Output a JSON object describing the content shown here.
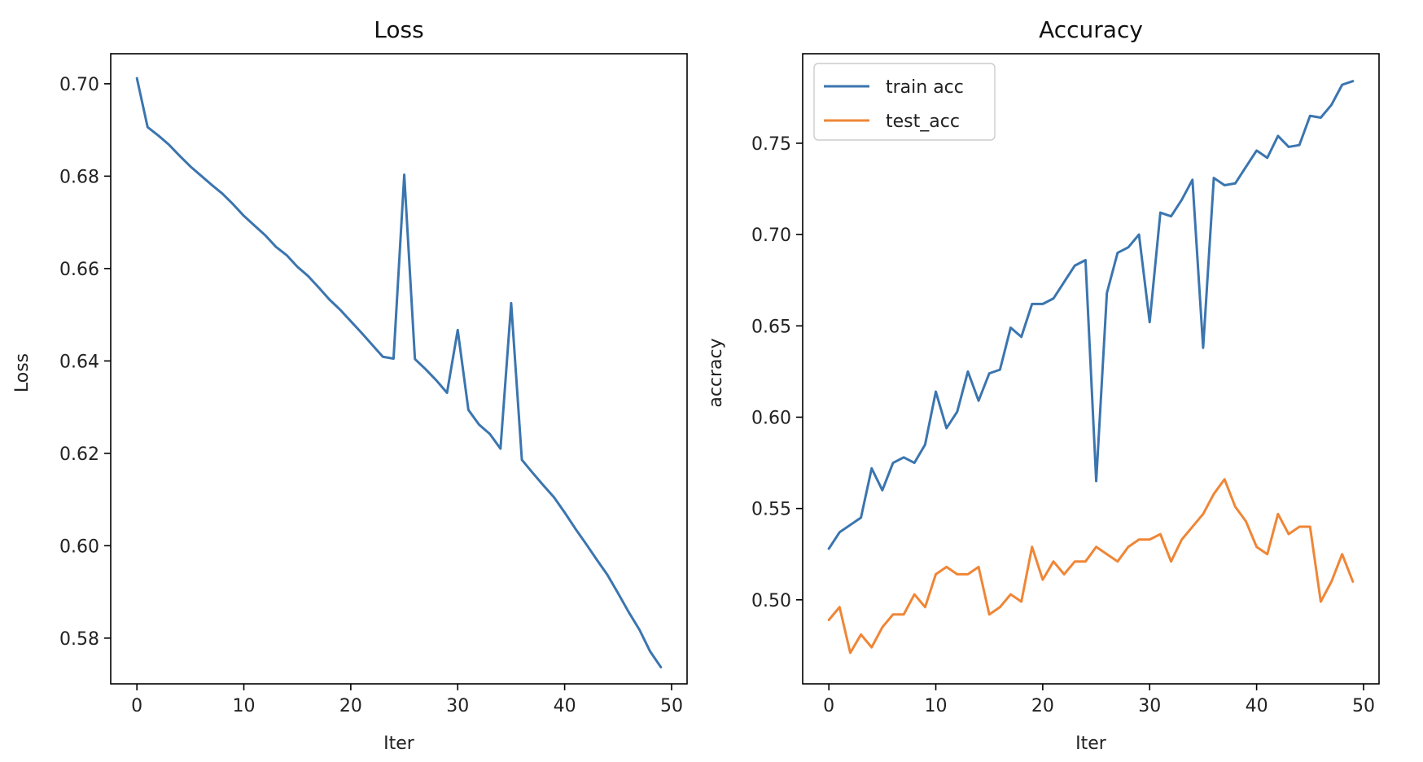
{
  "chart_data": [
    {
      "type": "line",
      "title": "Loss",
      "xlabel": "Iter",
      "ylabel": "Loss",
      "xlim": [
        -2.45,
        51.45
      ],
      "ylim": [
        0.5701,
        0.7065
      ],
      "xticks": [
        0,
        10,
        20,
        30,
        40,
        50
      ],
      "yticks": [
        0.58,
        0.6,
        0.62,
        0.64,
        0.66,
        0.68,
        0.7
      ],
      "ytick_format": 2,
      "legend": null,
      "series": [
        {
          "color": "#3b75af",
          "x": [
            0,
            1,
            2,
            3,
            4,
            5,
            6,
            7,
            8,
            9,
            10,
            11,
            12,
            13,
            14,
            15,
            16,
            17,
            18,
            19,
            20,
            21,
            22,
            23,
            24,
            25,
            26,
            27,
            28,
            29,
            30,
            31,
            32,
            33,
            34,
            35,
            36,
            37,
            38,
            39,
            40,
            41,
            42,
            43,
            44,
            45,
            46,
            47,
            48,
            49
          ],
          "values": [
            0.7012,
            0.6906,
            0.6888,
            0.6868,
            0.6844,
            0.6821,
            0.6801,
            0.6781,
            0.6762,
            0.6739,
            0.6714,
            0.6693,
            0.6672,
            0.6647,
            0.6629,
            0.6604,
            0.6584,
            0.6559,
            0.6533,
            0.6511,
            0.6486,
            0.6461,
            0.6435,
            0.6409,
            0.6405,
            0.6803,
            0.6404,
            0.6382,
            0.6358,
            0.6331,
            0.6467,
            0.6294,
            0.6262,
            0.6242,
            0.621,
            0.6525,
            0.6186,
            0.6158,
            0.6131,
            0.6105,
            0.6072,
            0.6037,
            0.6004,
            0.597,
            0.5937,
            0.5897,
            0.5856,
            0.5818,
            0.5771,
            0.5737
          ]
        }
      ]
    },
    {
      "type": "line",
      "title": "Accuracy",
      "xlabel": "Iter",
      "ylabel": "accracy",
      "xlim": [
        -2.45,
        51.45
      ],
      "ylim": [
        0.454,
        0.799
      ],
      "xticks": [
        0,
        10,
        20,
        30,
        40,
        50
      ],
      "yticks": [
        0.5,
        0.55,
        0.6,
        0.65,
        0.7,
        0.75
      ],
      "ytick_format": 2,
      "legend": "top-left",
      "series": [
        {
          "name": "train acc",
          "color": "#3b75af",
          "x": [
            0,
            1,
            2,
            3,
            4,
            5,
            6,
            7,
            8,
            9,
            10,
            11,
            12,
            13,
            14,
            15,
            16,
            17,
            18,
            19,
            20,
            21,
            22,
            23,
            24,
            25,
            26,
            27,
            28,
            29,
            30,
            31,
            32,
            33,
            34,
            35,
            36,
            37,
            38,
            39,
            40,
            41,
            42,
            43,
            44,
            45,
            46,
            47,
            48,
            49
          ],
          "values": [
            0.528,
            0.537,
            0.541,
            0.545,
            0.572,
            0.56,
            0.575,
            0.578,
            0.575,
            0.585,
            0.614,
            0.594,
            0.603,
            0.625,
            0.609,
            0.624,
            0.626,
            0.649,
            0.644,
            0.662,
            0.662,
            0.665,
            0.674,
            0.683,
            0.686,
            0.565,
            0.668,
            0.69,
            0.693,
            0.7,
            0.652,
            0.712,
            0.71,
            0.719,
            0.73,
            0.638,
            0.731,
            0.727,
            0.728,
            0.737,
            0.746,
            0.742,
            0.754,
            0.748,
            0.749,
            0.765,
            0.764,
            0.771,
            0.782,
            0.784
          ]
        },
        {
          "name": "test_acc",
          "color": "#ef8636",
          "x": [
            0,
            1,
            2,
            3,
            4,
            5,
            6,
            7,
            8,
            9,
            10,
            11,
            12,
            13,
            14,
            15,
            16,
            17,
            18,
            19,
            20,
            21,
            22,
            23,
            24,
            25,
            26,
            27,
            28,
            29,
            30,
            31,
            32,
            33,
            34,
            35,
            36,
            37,
            38,
            39,
            40,
            41,
            42,
            43,
            44,
            45,
            46,
            47,
            48,
            49
          ],
          "values": [
            0.489,
            0.496,
            0.471,
            0.481,
            0.474,
            0.485,
            0.492,
            0.492,
            0.503,
            0.496,
            0.514,
            0.518,
            0.514,
            0.514,
            0.518,
            0.492,
            0.496,
            0.503,
            0.499,
            0.529,
            0.511,
            0.521,
            0.514,
            0.521,
            0.521,
            0.529,
            0.525,
            0.521,
            0.529,
            0.533,
            0.533,
            0.536,
            0.521,
            0.533,
            0.54,
            0.547,
            0.558,
            0.566,
            0.551,
            0.543,
            0.529,
            0.525,
            0.547,
            0.536,
            0.54,
            0.54,
            0.499,
            0.51,
            0.525,
            0.51
          ]
        }
      ]
    }
  ]
}
